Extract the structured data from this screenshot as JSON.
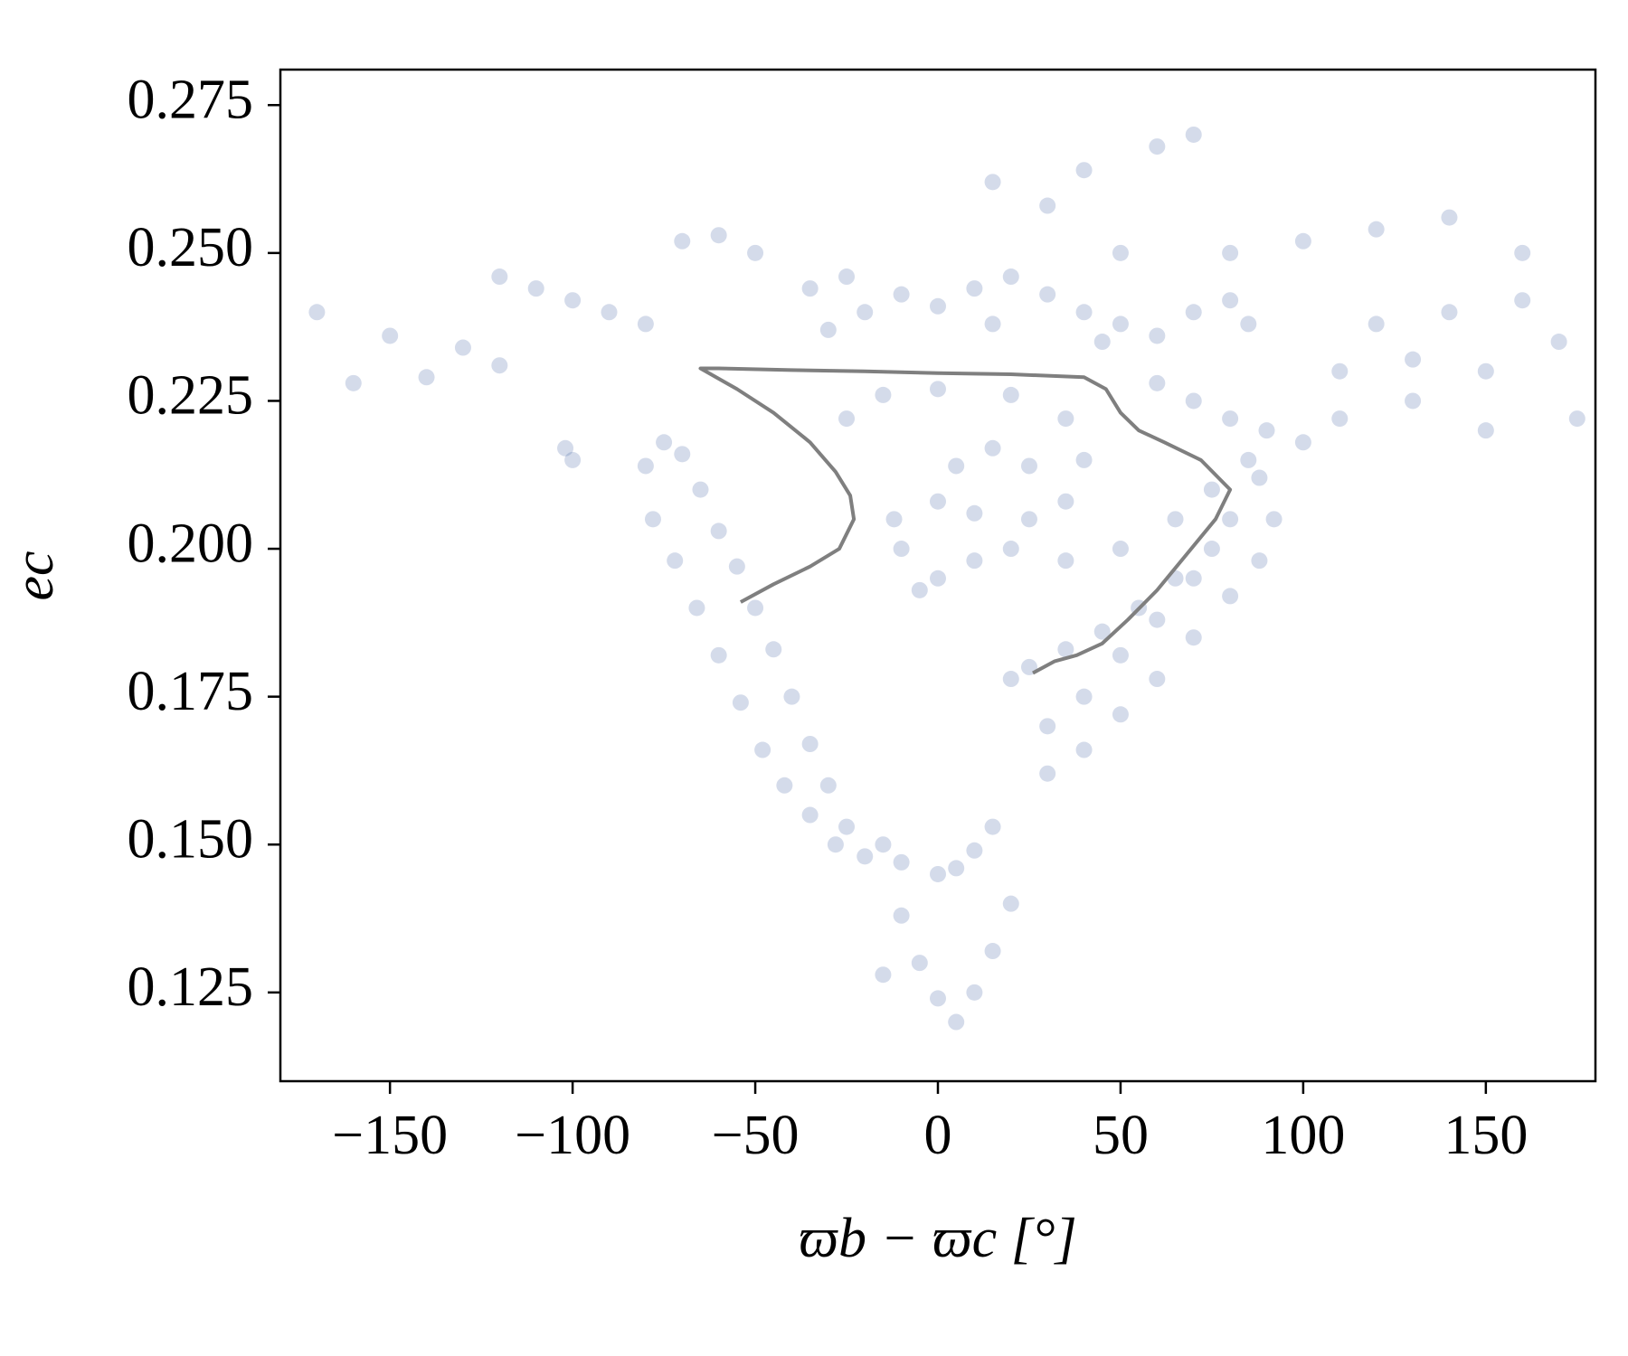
{
  "chart_data": {
    "type": "scatter",
    "xlabel": "ϖb − ϖc [°]",
    "ylabel": "ec",
    "xlim": [
      -180,
      180
    ],
    "ylim": [
      0.11,
      0.281
    ],
    "xticks": [
      {
        "value": -150,
        "label": "−150"
      },
      {
        "value": -100,
        "label": "−100"
      },
      {
        "value": -50,
        "label": "−50"
      },
      0,
      50,
      100,
      150
    ],
    "yticks": [
      0.125,
      {
        "value": 0.15,
        "label": "0.150"
      },
      0.175,
      {
        "value": 0.2,
        "label": "0.200"
      },
      0.225,
      {
        "value": 0.25,
        "label": "0.250"
      },
      0.275
    ],
    "series": [
      {
        "type": "scatter",
        "color": "#3b5c9e",
        "x": [
          -120,
          -110,
          -100,
          -90,
          -80,
          -170,
          -150,
          -130,
          -160,
          -140,
          -120,
          -102,
          -100,
          -80,
          -75,
          -70,
          -65,
          -60,
          -55,
          -50,
          -45,
          -40,
          -35,
          -30,
          -25,
          -20,
          -15,
          -78,
          -72,
          -66,
          -60,
          -54,
          -48,
          -42,
          -35,
          -28,
          -10,
          0,
          5,
          10,
          15,
          -10,
          -5,
          0,
          5,
          10,
          15,
          -15,
          20,
          -25,
          -15,
          0,
          20,
          35,
          40,
          35,
          25,
          10,
          0,
          5,
          15,
          25,
          -35,
          -25,
          -10,
          0,
          10,
          20,
          30,
          40,
          50,
          60,
          70,
          80,
          85,
          -30,
          -20,
          15,
          45,
          15,
          30,
          40,
          60,
          70,
          50,
          80,
          100,
          120,
          140,
          160,
          -70,
          -60,
          -50,
          60,
          70,
          80,
          90,
          100,
          110,
          130,
          150,
          170,
          175,
          88,
          92,
          88,
          80,
          70,
          60,
          50,
          40,
          30,
          75,
          65,
          55,
          45,
          35,
          25,
          20,
          30,
          40,
          50,
          60,
          70,
          80,
          85,
          75,
          65,
          50,
          35,
          20,
          10,
          0,
          -5,
          -10,
          -12,
          120,
          140,
          160,
          110,
          130,
          150
        ],
        "y": [
          0.246,
          0.244,
          0.242,
          0.24,
          0.238,
          0.24,
          0.236,
          0.234,
          0.228,
          0.229,
          0.231,
          0.217,
          0.215,
          0.214,
          0.218,
          0.216,
          0.21,
          0.203,
          0.197,
          0.19,
          0.183,
          0.175,
          0.167,
          0.16,
          0.153,
          0.148,
          0.15,
          0.205,
          0.198,
          0.19,
          0.182,
          0.174,
          0.166,
          0.16,
          0.155,
          0.15,
          0.147,
          0.145,
          0.146,
          0.149,
          0.153,
          0.138,
          0.13,
          0.124,
          0.12,
          0.125,
          0.132,
          0.128,
          0.14,
          0.222,
          0.226,
          0.227,
          0.226,
          0.222,
          0.215,
          0.208,
          0.205,
          0.206,
          0.208,
          0.214,
          0.217,
          0.214,
          0.244,
          0.246,
          0.243,
          0.241,
          0.244,
          0.246,
          0.243,
          0.24,
          0.238,
          0.236,
          0.24,
          0.242,
          0.238,
          0.237,
          0.24,
          0.238,
          0.235,
          0.262,
          0.258,
          0.264,
          0.268,
          0.27,
          0.25,
          0.25,
          0.252,
          0.254,
          0.256,
          0.25,
          0.252,
          0.253,
          0.25,
          0.228,
          0.225,
          0.222,
          0.22,
          0.218,
          0.222,
          0.225,
          0.23,
          0.235,
          0.222,
          0.212,
          0.205,
          0.198,
          0.192,
          0.185,
          0.178,
          0.172,
          0.166,
          0.162,
          0.2,
          0.195,
          0.19,
          0.186,
          0.183,
          0.18,
          0.178,
          0.17,
          0.175,
          0.182,
          0.188,
          0.195,
          0.205,
          0.215,
          0.21,
          0.205,
          0.2,
          0.198,
          0.2,
          0.198,
          0.195,
          0.193,
          0.2,
          0.205,
          0.238,
          0.24,
          0.242,
          0.23,
          0.232,
          0.22
        ]
      },
      {
        "type": "line",
        "color": "#7f7f7f",
        "x": [
          -54,
          -45,
          -35,
          -27,
          -23,
          -24,
          -28,
          -35,
          -45,
          -55,
          -65,
          -60,
          -40,
          -20,
          0,
          20,
          40,
          46,
          50,
          55,
          62,
          72,
          80,
          76,
          68,
          60,
          52,
          45,
          38,
          32,
          26
        ],
        "y": [
          0.191,
          0.194,
          0.197,
          0.2,
          0.205,
          0.209,
          0.213,
          0.218,
          0.223,
          0.227,
          0.2305,
          0.2305,
          0.2302,
          0.23,
          0.2297,
          0.2295,
          0.229,
          0.227,
          0.223,
          0.22,
          0.218,
          0.215,
          0.21,
          0.205,
          0.199,
          0.193,
          0.188,
          0.184,
          0.182,
          0.181,
          0.179
        ]
      }
    ]
  }
}
